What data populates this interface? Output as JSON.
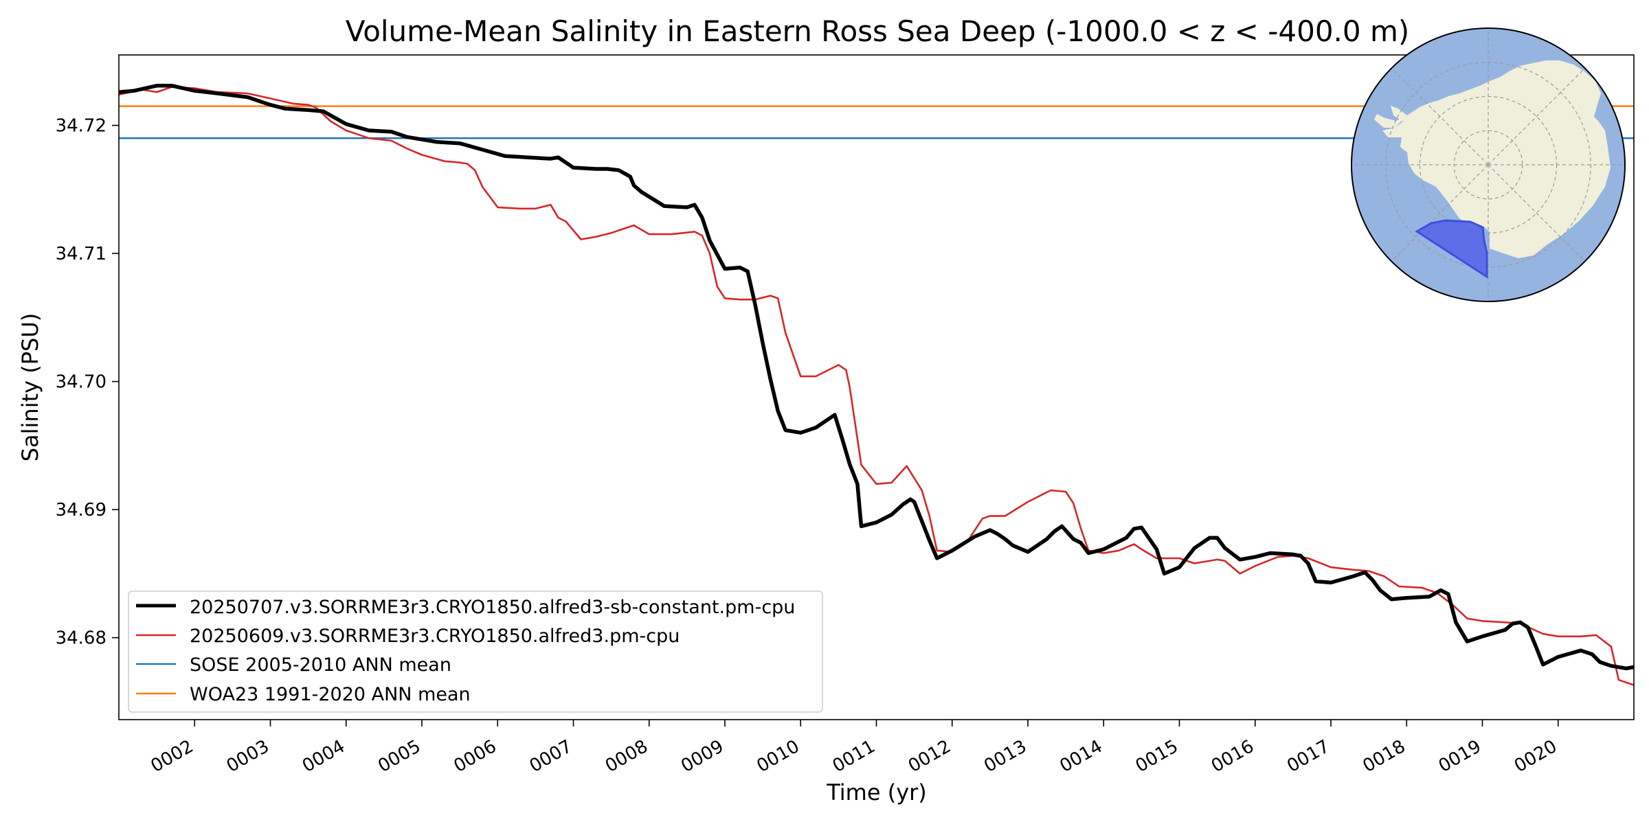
{
  "chart_data": {
    "type": "line",
    "title": "Volume-Mean Salinity in Eastern Ross Sea Deep (-1000.0 < z < -400.0 m)",
    "xlabel": "Time (yr)",
    "ylabel": "Salinity (PSU)",
    "xlim": [
      1.0,
      21.0
    ],
    "ylim": [
      34.6736,
      34.7255
    ],
    "x_ticks": [
      2,
      3,
      4,
      5,
      6,
      7,
      8,
      9,
      10,
      11,
      12,
      13,
      14,
      15,
      16,
      17,
      18,
      19,
      20
    ],
    "x_tick_labels": [
      "0002",
      "0003",
      "0004",
      "0005",
      "0006",
      "0007",
      "0008",
      "0009",
      "0010",
      "0011",
      "0012",
      "0013",
      "0014",
      "0015",
      "0016",
      "0017",
      "0018",
      "0019",
      "0020"
    ],
    "y_ticks": [
      34.68,
      34.69,
      34.7,
      34.71,
      34.72
    ],
    "y_tick_labels": [
      "34.68",
      "34.69",
      "34.70",
      "34.71",
      "34.72"
    ],
    "grid": false,
    "legend_position": "lower-left",
    "series": [
      {
        "name": "20250707.v3.SORRME3r3.CRYO1850.alfred3-sb-constant.pm-cpu",
        "color": "#000000",
        "style": "thick",
        "x": [
          1.0,
          1.2,
          1.5,
          1.7,
          2.0,
          2.3,
          2.7,
          3.0,
          3.2,
          3.5,
          3.7,
          4.0,
          4.3,
          4.6,
          4.8,
          5.0,
          5.2,
          5.5,
          5.8,
          6.1,
          6.4,
          6.7,
          6.8,
          7.0,
          7.3,
          7.45,
          7.6,
          7.75,
          7.8,
          7.9,
          8.2,
          8.5,
          8.6,
          8.7,
          8.8,
          9.0,
          9.2,
          9.3,
          9.4,
          9.5,
          9.6,
          9.7,
          9.8,
          10.0,
          10.2,
          10.45,
          10.55,
          10.65,
          10.75,
          10.8,
          11.0,
          11.2,
          11.35,
          11.45,
          11.5,
          11.7,
          11.8,
          12.0,
          12.3,
          12.5,
          12.6,
          12.7,
          12.8,
          13.0,
          13.25,
          13.35,
          13.45,
          13.6,
          13.7,
          13.8,
          14.0,
          14.3,
          14.4,
          14.5,
          14.7,
          14.8,
          15.0,
          15.2,
          15.4,
          15.5,
          15.6,
          15.8,
          16.0,
          16.2,
          16.5,
          16.6,
          16.7,
          16.8,
          17.0,
          17.3,
          17.45,
          17.55,
          17.65,
          17.8,
          18.0,
          18.3,
          18.45,
          18.55,
          18.65,
          18.8,
          19.0,
          19.3,
          19.4,
          19.5,
          19.6,
          19.7,
          19.8,
          20.0,
          20.3,
          20.45,
          20.55,
          20.7,
          20.9,
          21.0
        ],
        "y": [
          34.7226,
          34.7227,
          34.7231,
          34.7231,
          34.7227,
          34.7225,
          34.7222,
          34.7216,
          34.7213,
          34.7212,
          34.7211,
          34.7201,
          34.7196,
          34.7195,
          34.7191,
          34.7189,
          34.7187,
          34.7186,
          34.7181,
          34.7176,
          34.7175,
          34.7174,
          34.7175,
          34.7167,
          34.7166,
          34.7166,
          34.7165,
          34.716,
          34.7153,
          34.7148,
          34.7137,
          34.7136,
          34.7138,
          34.7128,
          34.711,
          34.7088,
          34.7089,
          34.7086,
          34.706,
          34.703,
          34.7002,
          34.6977,
          34.6962,
          34.696,
          34.6964,
          34.6974,
          34.6955,
          34.6935,
          34.692,
          34.6887,
          34.689,
          34.6896,
          34.6904,
          34.6908,
          34.6906,
          34.6876,
          34.6862,
          34.6868,
          34.6879,
          34.6884,
          34.6881,
          34.6877,
          34.6872,
          34.6867,
          34.6877,
          34.6883,
          34.6887,
          34.6877,
          34.6874,
          34.6866,
          34.6869,
          34.6878,
          34.6885,
          34.6886,
          34.6869,
          34.685,
          34.6855,
          34.687,
          34.6878,
          34.6878,
          34.687,
          34.6861,
          34.6863,
          34.6866,
          34.6865,
          34.6864,
          34.6858,
          34.6844,
          34.6843,
          34.6848,
          34.6851,
          34.6845,
          34.6837,
          34.683,
          34.6831,
          34.6832,
          34.6837,
          34.6834,
          34.6812,
          34.6797,
          34.6801,
          34.6806,
          34.6811,
          34.6812,
          34.6808,
          34.6794,
          34.6779,
          34.6785,
          34.679,
          34.6787,
          34.6781,
          34.6778,
          34.6776,
          34.6777
        ]
      },
      {
        "name": "20250609.v3.SORRME3r3.CRYO1850.alfred3.pm-cpu",
        "color": "#d62728",
        "style": "thin",
        "x": [
          1.0,
          1.3,
          1.5,
          1.7,
          2.0,
          2.3,
          2.7,
          3.0,
          3.3,
          3.5,
          3.6,
          3.8,
          4.0,
          4.3,
          4.6,
          4.8,
          5.0,
          5.3,
          5.5,
          5.6,
          5.7,
          5.8,
          6.0,
          6.3,
          6.5,
          6.7,
          6.8,
          6.9,
          7.1,
          7.3,
          7.5,
          7.6,
          7.8,
          8.0,
          8.3,
          8.6,
          8.7,
          8.8,
          8.9,
          9.0,
          9.2,
          9.4,
          9.6,
          9.7,
          9.8,
          10.0,
          10.2,
          10.4,
          10.5,
          10.6,
          10.65,
          10.7,
          10.8,
          11.0,
          11.2,
          11.4,
          11.6,
          11.7,
          11.8,
          12.0,
          12.2,
          12.4,
          12.5,
          12.7,
          13.0,
          13.2,
          13.3,
          13.5,
          13.6,
          13.7,
          13.8,
          14.0,
          14.2,
          14.4,
          14.5,
          14.7,
          15.0,
          15.2,
          15.5,
          15.6,
          15.8,
          16.0,
          16.3,
          16.5,
          16.7,
          17.0,
          17.3,
          17.5,
          17.7,
          17.9,
          18.2,
          18.4,
          18.6,
          18.8,
          19.0,
          19.3,
          19.5,
          19.8,
          20.0,
          20.3,
          20.5,
          20.7,
          20.8,
          21.0
        ],
        "y": [
          34.7224,
          34.7228,
          34.7226,
          34.723,
          34.7229,
          34.7226,
          34.7225,
          34.7221,
          34.7217,
          34.7216,
          34.7214,
          34.7203,
          34.7196,
          34.719,
          34.7188,
          34.7182,
          34.7177,
          34.7172,
          34.7171,
          34.717,
          34.7165,
          34.7152,
          34.7136,
          34.7135,
          34.7135,
          34.7138,
          34.7128,
          34.7125,
          34.7111,
          34.7113,
          34.7116,
          34.7118,
          34.7122,
          34.7115,
          34.7115,
          34.7117,
          34.7114,
          34.71,
          34.7074,
          34.7065,
          34.7064,
          34.7064,
          34.7067,
          34.7065,
          34.7038,
          34.7004,
          34.7004,
          34.701,
          34.7013,
          34.7009,
          34.6995,
          34.6975,
          34.6935,
          34.692,
          34.6921,
          34.6934,
          34.6915,
          34.6895,
          34.6868,
          34.6867,
          34.6875,
          34.6893,
          34.6895,
          34.6895,
          34.6906,
          34.6912,
          34.6915,
          34.6914,
          34.6905,
          34.6885,
          34.6868,
          34.6866,
          34.6868,
          34.6873,
          34.6869,
          34.6862,
          34.6862,
          34.6858,
          34.6861,
          34.686,
          34.685,
          34.6856,
          34.6863,
          34.6864,
          34.6862,
          34.6855,
          34.6853,
          34.6852,
          34.6848,
          34.684,
          34.6839,
          34.6835,
          34.6826,
          34.6815,
          34.6813,
          34.6812,
          34.6811,
          34.6803,
          34.6801,
          34.6801,
          34.6802,
          34.6793,
          34.6767,
          34.6763
        ]
      },
      {
        "name": "SOSE 2005-2010 ANN mean",
        "color": "#1f77b4",
        "style": "hline",
        "value": 34.719
      },
      {
        "name": "WOA23 1991-2020 ANN mean",
        "color": "#ff7f0e",
        "style": "hline",
        "value": 34.7215
      }
    ]
  },
  "inset_map": {
    "colors": {
      "ocean": "#96b4e0",
      "land": "#efefdc",
      "region": "#5a6ae8",
      "region_edge": "#3d4fe0",
      "graticule": "#9a9a9a"
    }
  }
}
